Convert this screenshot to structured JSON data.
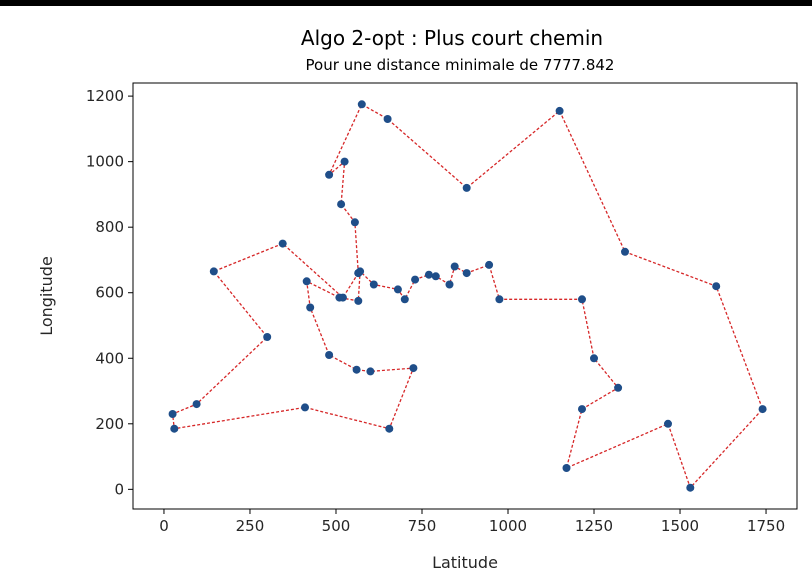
{
  "chart_data": {
    "type": "line",
    "title": "Algo 2-opt : Plus court chemin",
    "subtitle": "Pour une distance minimale de 7777.842",
    "xlabel": "Latitude",
    "ylabel": "Longitude",
    "xlim": [
      -90,
      1840
    ],
    "ylim": [
      -60,
      1240
    ],
    "xticks": [
      0,
      250,
      500,
      750,
      1000,
      1250,
      1500,
      1750
    ],
    "yticks": [
      0,
      200,
      400,
      600,
      800,
      1000,
      1200
    ],
    "grid": false,
    "line_color": "#d62728",
    "marker_color": "#1f4e89",
    "series": [
      {
        "x": [
          565,
          520,
          345,
          145,
          300,
          95,
          25,
          30,
          410,
          655,
          725,
          600,
          560,
          480,
          425,
          415,
          510,
          565,
          570,
          610,
          680,
          700,
          730,
          770,
          790,
          830,
          845,
          880,
          945,
          975,
          1215,
          1250,
          1320,
          1215,
          1170,
          1465,
          1530,
          1740,
          1605,
          1340,
          1150,
          880,
          650,
          575,
          480,
          525,
          515,
          555,
          565
        ],
        "y": [
          660,
          585,
          750,
          665,
          465,
          260,
          230,
          185,
          250,
          185,
          370,
          360,
          365,
          410,
          555,
          635,
          585,
          575,
          665,
          625,
          610,
          580,
          640,
          655,
          650,
          625,
          680,
          660,
          685,
          580,
          580,
          400,
          310,
          245,
          65,
          200,
          5,
          245,
          620,
          725,
          1155,
          920,
          1130,
          1175,
          960,
          1000,
          870,
          815,
          660
        ]
      }
    ]
  }
}
